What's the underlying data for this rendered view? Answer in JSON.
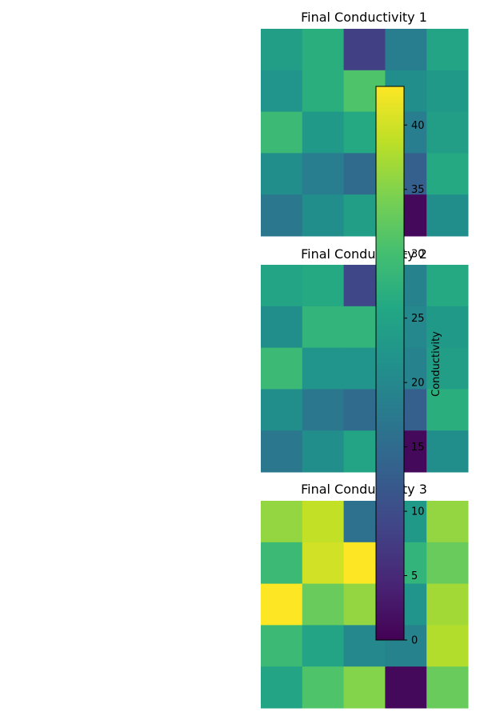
{
  "chart_data": [
    {
      "type": "heatmap",
      "title": "Final Conductivity 1",
      "values": [
        [
          24,
          27,
          8,
          18,
          25
        ],
        [
          22,
          27,
          31,
          21,
          23
        ],
        [
          29,
          23,
          26,
          18,
          24
        ],
        [
          21,
          18,
          15,
          13,
          26
        ],
        [
          17,
          21,
          24,
          1,
          21
        ]
      ]
    },
    {
      "type": "heatmap",
      "title": "Final Conductivity 2",
      "values": [
        [
          25,
          26,
          9,
          19,
          26
        ],
        [
          21,
          28,
          28,
          20,
          23
        ],
        [
          29,
          22,
          22,
          19,
          24
        ],
        [
          21,
          17,
          15,
          13,
          27
        ],
        [
          17,
          21,
          25,
          1,
          21
        ]
      ]
    },
    {
      "type": "heatmap",
      "title": "Final Conductivity 3",
      "values": [
        [
          36,
          39,
          16,
          23,
          36
        ],
        [
          29,
          40,
          43,
          28,
          33
        ],
        [
          43,
          33,
          36,
          22,
          37
        ],
        [
          29,
          25,
          20,
          19,
          38
        ],
        [
          25,
          31,
          35,
          1,
          33
        ]
      ]
    }
  ],
  "colorbar": {
    "label": "Conductivity",
    "vmin": 0,
    "vmax": 43,
    "colormap": "viridis",
    "ticks": [
      "0",
      "5",
      "10",
      "15",
      "20",
      "25",
      "30",
      "35",
      "40"
    ]
  }
}
